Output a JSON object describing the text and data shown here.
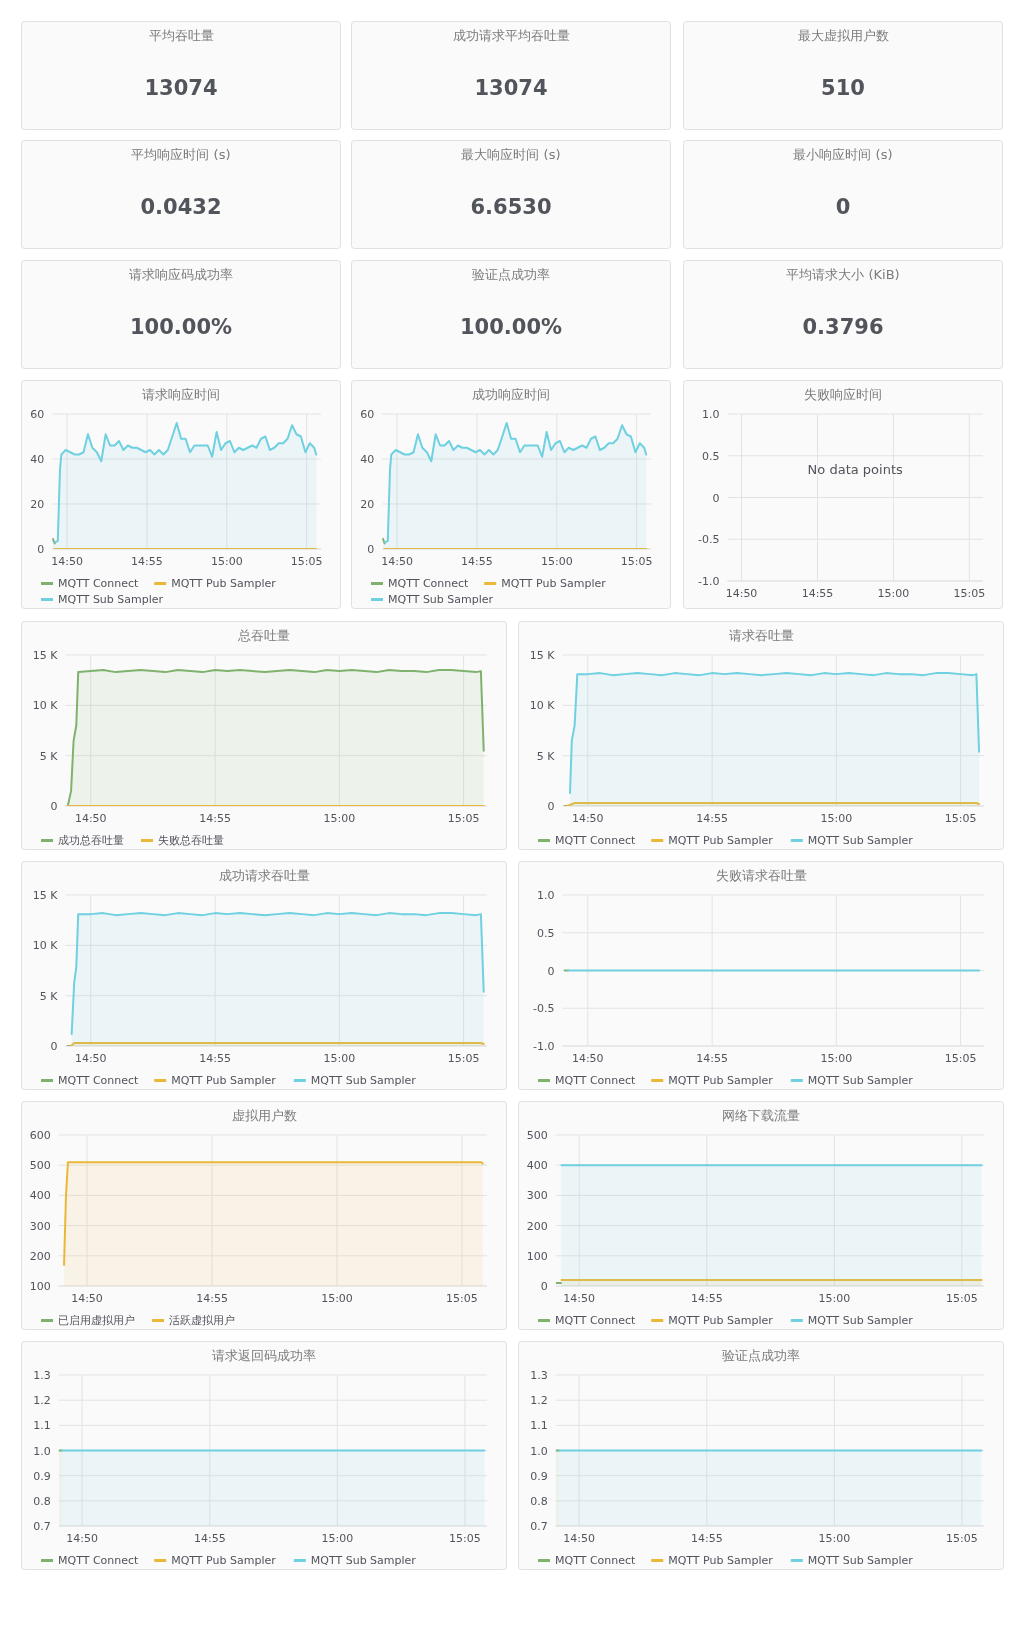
{
  "chart_data": [
    {
      "type": "other",
      "title": "平均吞吐量",
      "annotations": [
        "13074"
      ]
    },
    {
      "type": "other",
      "title": "成功请求平均吞吐量",
      "annotations": [
        "13074"
      ]
    },
    {
      "type": "other",
      "title": "最大虚拟用户数",
      "annotations": [
        "510"
      ]
    },
    {
      "type": "other",
      "title": "平均响应时间 (s)",
      "annotations": [
        "0.0432"
      ]
    },
    {
      "type": "other",
      "title": "最大响应时间 (s)",
      "annotations": [
        "6.6530"
      ]
    },
    {
      "type": "other",
      "title": "最小响应时间 (s)",
      "annotations": [
        "0"
      ]
    },
    {
      "type": "other",
      "title": "请求响应码成功率",
      "annotations": [
        "100.00%"
      ]
    },
    {
      "type": "other",
      "title": "验证点成功率",
      "annotations": [
        "100.00%"
      ]
    },
    {
      "type": "other",
      "title": "平均请求大小 (KiB)",
      "annotations": [
        "0.3796"
      ]
    },
    {
      "type": "area",
      "title": "请求响应时间",
      "grid": true,
      "legend": "bottom",
      "xlim": [
        14.8178,
        15.0983
      ],
      "ylim": [
        0,
        60
      ],
      "yticks": [
        0,
        20,
        40,
        60
      ],
      "xticks": [
        {
          "value": 14.8333,
          "label": "14:50"
        },
        {
          "value": 14.9167,
          "label": "14:55"
        },
        {
          "value": 15,
          "label": "15:00"
        },
        {
          "value": 15.0833,
          "label": "15:05"
        }
      ],
      "series": [
        {
          "name": "MQTT Connect",
          "color": "#7eb26d",
          "x": [
            14.8185,
            14.8204
          ],
          "values": [
            4.5,
            2.5
          ]
        },
        {
          "name": "MQTT Pub Sampler",
          "color": "#eab839",
          "type": "line",
          "x": [
            14.8204,
            15.0933
          ],
          "values": [
            0,
            0
          ]
        },
        {
          "name": "MQTT Sub Sampler",
          "color": "#6ed0e0",
          "x": [
            14.8204,
            14.8236,
            14.8259,
            14.8273,
            14.8319,
            14.8366,
            14.8412,
            14.8458,
            14.8505,
            14.8551,
            14.8597,
            14.8644,
            14.869,
            14.8736,
            14.8782,
            14.8829,
            14.8875,
            14.8921,
            14.8968,
            14.9014,
            14.906,
            14.9107,
            14.9153,
            14.9199,
            14.9245,
            14.9292,
            14.9338,
            14.9384,
            14.9431,
            14.9477,
            14.9523,
            14.957,
            14.9616,
            14.9662,
            14.9708,
            14.9755,
            14.9801,
            14.9847,
            14.9894,
            14.994,
            14.9986,
            15.0033,
            15.0079,
            15.0125,
            15.0171,
            15.0218,
            15.0264,
            15.031,
            15.0357,
            15.0403,
            15.0449,
            15.0496,
            15.0542,
            15.0588,
            15.0634,
            15.0681,
            15.0727,
            15.0773,
            15.082,
            15.0866,
            15.0912,
            15.0933
          ],
          "values": [
            3,
            3.5,
            35,
            42,
            44,
            43,
            42,
            42,
            43,
            51,
            45,
            43,
            39,
            51,
            46,
            46,
            48,
            44,
            46,
            45,
            45,
            44,
            43,
            44,
            42,
            44,
            42,
            44,
            50,
            56,
            49,
            49,
            43,
            46,
            46,
            46,
            46,
            41,
            52,
            44,
            47,
            48,
            43,
            45,
            44,
            45,
            46,
            45,
            49,
            50,
            44,
            45,
            47,
            47,
            49,
            55,
            51,
            50,
            43,
            47,
            45,
            42
          ]
        }
      ]
    },
    {
      "type": "area",
      "title": "成功响应时间",
      "grid": true,
      "legend": "bottom",
      "xlim": [
        14.8178,
        15.0983
      ],
      "ylim": [
        0,
        60
      ],
      "yticks": [
        0,
        20,
        40,
        60
      ],
      "xticks": [
        {
          "value": 14.8333,
          "label": "14:50"
        },
        {
          "value": 14.9167,
          "label": "14:55"
        },
        {
          "value": 15,
          "label": "15:00"
        },
        {
          "value": 15.0833,
          "label": "15:05"
        }
      ],
      "series": [
        {
          "name": "MQTT Connect",
          "color": "#7eb26d",
          "x": [
            14.8185,
            14.8204
          ],
          "values": [
            4.5,
            2.5
          ]
        },
        {
          "name": "MQTT Pub Sampler",
          "color": "#eab839",
          "type": "line",
          "x": [
            14.8204,
            15.0933
          ],
          "values": [
            0,
            0
          ]
        },
        {
          "name": "MQTT Sub Sampler",
          "color": "#6ed0e0",
          "x": [
            14.8204,
            14.8236,
            14.8259,
            14.8273,
            14.8319,
            14.8366,
            14.8412,
            14.8458,
            14.8505,
            14.8551,
            14.8597,
            14.8644,
            14.869,
            14.8736,
            14.8782,
            14.8829,
            14.8875,
            14.8921,
            14.8968,
            14.9014,
            14.906,
            14.9107,
            14.9153,
            14.9199,
            14.9245,
            14.9292,
            14.9338,
            14.9384,
            14.9431,
            14.9477,
            14.9523,
            14.957,
            14.9616,
            14.9662,
            14.9708,
            14.9755,
            14.9801,
            14.9847,
            14.9894,
            14.994,
            14.9986,
            15.0033,
            15.0079,
            15.0125,
            15.0171,
            15.0218,
            15.0264,
            15.031,
            15.0357,
            15.0403,
            15.0449,
            15.0496,
            15.0542,
            15.0588,
            15.0634,
            15.0681,
            15.0727,
            15.0773,
            15.082,
            15.0866,
            15.0912,
            15.0933
          ],
          "values": [
            3,
            3.5,
            35,
            42,
            44,
            43,
            42,
            42,
            43,
            51,
            45,
            43,
            39,
            51,
            46,
            46,
            48,
            44,
            46,
            45,
            45,
            44,
            43,
            44,
            42,
            44,
            42,
            44,
            50,
            56,
            49,
            49,
            43,
            46,
            46,
            46,
            46,
            41,
            52,
            44,
            47,
            48,
            43,
            45,
            44,
            45,
            46,
            45,
            49,
            50,
            44,
            45,
            47,
            47,
            49,
            55,
            51,
            50,
            43,
            47,
            45,
            42
          ]
        }
      ]
    },
    {
      "type": "line",
      "title": "失败响应时间",
      "grid": true,
      "xlim": [
        14.8178,
        15.0983
      ],
      "ylim": [
        -1,
        1
      ],
      "yticks": [
        {
          "value": -1,
          "label": "-1.0"
        },
        -0.5,
        0,
        0.5,
        {
          "value": 1,
          "label": "1.0"
        }
      ],
      "xticks": [
        {
          "value": 14.8333,
          "label": "14:50"
        },
        {
          "value": 14.9167,
          "label": "14:55"
        },
        {
          "value": 15,
          "label": "15:00"
        },
        {
          "value": 15.0833,
          "label": "15:05"
        }
      ],
      "annotations": [
        "No data points"
      ]
    },
    {
      "type": "area",
      "title": "总吞吐量",
      "grid": true,
      "legend": "bottom",
      "xlim": [
        14.8163,
        15.099
      ],
      "ylim": [
        0,
        15000
      ],
      "yticks": [
        0,
        {
          "value": 5000,
          "label": "5 K"
        },
        {
          "value": 10000,
          "label": "10 K"
        },
        {
          "value": 15000,
          "label": "15 K"
        }
      ],
      "xticks": [
        {
          "value": 14.8333,
          "label": "14:50"
        },
        {
          "value": 14.9167,
          "label": "14:55"
        },
        {
          "value": 15,
          "label": "15:00"
        },
        {
          "value": 15.0833,
          "label": "15:05"
        }
      ],
      "series": [
        {
          "name": "成功总吞吐量",
          "color": "#7eb26d",
          "x": [
            14.8179,
            14.8201,
            14.8218,
            14.8236,
            14.8249,
            14.8333,
            14.8417,
            14.85,
            14.8583,
            14.8667,
            14.875,
            14.8833,
            14.8917,
            14.9,
            14.9083,
            14.9167,
            14.925,
            14.9333,
            14.9417,
            14.95,
            14.9583,
            14.9667,
            14.975,
            14.9833,
            14.9917,
            15,
            15.0083,
            15.0167,
            15.025,
            15.0333,
            15.0417,
            15.05,
            15.0583,
            15.0667,
            15.075,
            15.0833,
            15.0917,
            15.0949,
            15.0968
          ],
          "values": [
            0,
            1500,
            6500,
            8000,
            13300,
            13400,
            13500,
            13300,
            13400,
            13500,
            13400,
            13300,
            13500,
            13400,
            13300,
            13500,
            13400,
            13500,
            13400,
            13300,
            13400,
            13500,
            13400,
            13300,
            13500,
            13400,
            13500,
            13400,
            13300,
            13500,
            13400,
            13400,
            13300,
            13500,
            13500,
            13400,
            13300,
            13400,
            5500
          ]
        },
        {
          "name": "失败总吞吐量",
          "color": "#eab839",
          "type": "line",
          "x": [
            14.8179,
            15.0968
          ],
          "values": [
            0,
            0
          ]
        }
      ]
    },
    {
      "type": "area",
      "title": "请求吞吐量",
      "grid": true,
      "legend": "bottom",
      "xlim": [
        14.8163,
        15.099
      ],
      "ylim": [
        0,
        15000
      ],
      "yticks": [
        0,
        {
          "value": 5000,
          "label": "5 K"
        },
        {
          "value": 10000,
          "label": "10 K"
        },
        {
          "value": 15000,
          "label": "15 K"
        }
      ],
      "xticks": [
        {
          "value": 14.8333,
          "label": "14:50"
        },
        {
          "value": 14.9167,
          "label": "14:55"
        },
        {
          "value": 15,
          "label": "15:00"
        },
        {
          "value": 15.0833,
          "label": "15:05"
        }
      ],
      "series": [
        {
          "name": "MQTT Connect",
          "color": "#7eb26d",
          "type": "line",
          "x": [
            14.8179,
            14.8201
          ],
          "values": [
            0,
            0
          ]
        },
        {
          "name": "MQTT Pub Sampler",
          "color": "#eab839",
          "x": [
            14.8196,
            14.8245,
            15.0939,
            15.0957
          ],
          "values": [
            0,
            300,
            300,
            200
          ]
        },
        {
          "name": "MQTT Sub Sampler",
          "color": "#6ed0e0",
          "x": [
            14.8214,
            14.8226,
            14.8245,
            14.8263,
            14.8333,
            14.8417,
            14.85,
            14.8583,
            14.8667,
            14.875,
            14.8833,
            14.8917,
            14.9,
            14.9083,
            14.9167,
            14.925,
            14.9333,
            14.9417,
            14.95,
            14.9583,
            14.9667,
            14.975,
            14.9833,
            14.9917,
            15,
            15.0083,
            15.0167,
            15.025,
            15.0333,
            15.0417,
            15.05,
            15.0583,
            15.0667,
            15.075,
            15.0833,
            15.0917,
            15.0939,
            15.0957
          ],
          "values": [
            1300,
            6500,
            8000,
            13100,
            13100,
            13200,
            13000,
            13100,
            13200,
            13100,
            13000,
            13200,
            13100,
            13000,
            13200,
            13100,
            13200,
            13100,
            13000,
            13100,
            13200,
            13100,
            13000,
            13200,
            13100,
            13200,
            13100,
            13000,
            13200,
            13100,
            13100,
            13000,
            13200,
            13200,
            13100,
            13000,
            13100,
            5400
          ]
        }
      ]
    },
    {
      "type": "area",
      "title": "成功请求吞吐量",
      "grid": true,
      "legend": "bottom",
      "xlim": [
        14.8163,
        15.099
      ],
      "ylim": [
        0,
        15000
      ],
      "yticks": [
        0,
        {
          "value": 5000,
          "label": "5 K"
        },
        {
          "value": 10000,
          "label": "10 K"
        },
        {
          "value": 15000,
          "label": "15 K"
        }
      ],
      "xticks": [
        {
          "value": 14.8333,
          "label": "14:50"
        },
        {
          "value": 14.9167,
          "label": "14:55"
        },
        {
          "value": 15,
          "label": "15:00"
        },
        {
          "value": 15.0833,
          "label": "15:05"
        }
      ],
      "series": [
        {
          "name": "MQTT Connect",
          "color": "#7eb26d",
          "type": "line",
          "x": [
            14.8179,
            14.8201
          ],
          "values": [
            0,
            0
          ]
        },
        {
          "name": "MQTT Pub Sampler",
          "color": "#eab839",
          "x": [
            14.8201,
            14.8222,
            15.0949,
            15.0968
          ],
          "values": [
            0,
            300,
            300,
            200
          ]
        },
        {
          "name": "MQTT Sub Sampler",
          "color": "#6ed0e0",
          "x": [
            14.8205,
            14.8222,
            14.8236,
            14.8249,
            14.8333,
            14.8417,
            14.85,
            14.8583,
            14.8667,
            14.875,
            14.8833,
            14.8917,
            14.9,
            14.9083,
            14.9167,
            14.925,
            14.9333,
            14.9417,
            14.95,
            14.9583,
            14.9667,
            14.975,
            14.9833,
            14.9917,
            15,
            15.0083,
            15.0167,
            15.025,
            15.0333,
            15.0417,
            15.05,
            15.0583,
            15.0667,
            15.075,
            15.0833,
            15.0917,
            15.0949,
            15.0968
          ],
          "values": [
            1200,
            6300,
            7800,
            13100,
            13100,
            13200,
            13000,
            13100,
            13200,
            13100,
            13000,
            13200,
            13100,
            13000,
            13200,
            13100,
            13200,
            13100,
            13000,
            13100,
            13200,
            13100,
            13000,
            13200,
            13100,
            13200,
            13100,
            13000,
            13200,
            13100,
            13100,
            13000,
            13200,
            13200,
            13100,
            13000,
            13100,
            5400
          ]
        }
      ]
    },
    {
      "type": "line",
      "title": "失败请求吞吐量",
      "grid": true,
      "legend": "bottom",
      "xlim": [
        14.8163,
        15.099
      ],
      "ylim": [
        -1,
        1
      ],
      "yticks": [
        {
          "value": -1,
          "label": "-1.0"
        },
        -0.5,
        0,
        0.5,
        {
          "value": 1,
          "label": "1.0"
        }
      ],
      "xticks": [
        {
          "value": 14.8333,
          "label": "14:50"
        },
        {
          "value": 14.9167,
          "label": "14:55"
        },
        {
          "value": 15,
          "label": "15:00"
        },
        {
          "value": 15.0833,
          "label": "15:05"
        }
      ],
      "series": [
        {
          "name": "MQTT Connect",
          "color": "#7eb26d",
          "x": [
            14.8179,
            14.8201
          ],
          "values": [
            0,
            0
          ]
        },
        {
          "name": "MQTT Pub Sampler",
          "color": "#eab839",
          "values": [
            null
          ]
        },
        {
          "name": "MQTT Sub Sampler",
          "color": "#6ed0e0",
          "x": [
            14.8201,
            15.0957
          ],
          "values": [
            0,
            0
          ]
        }
      ]
    },
    {
      "type": "area",
      "title": "虚拟用户数",
      "grid": true,
      "legend": "bottom",
      "xlim": [
        14.8145,
        15.1
      ],
      "ylim": [
        100,
        600
      ],
      "yticks": [
        100,
        200,
        300,
        400,
        500,
        600
      ],
      "xticks": [
        {
          "value": 14.8333,
          "label": "14:50"
        },
        {
          "value": 14.9167,
          "label": "14:55"
        },
        {
          "value": 15,
          "label": "15:00"
        },
        {
          "value": 15.0833,
          "label": "15:05"
        }
      ],
      "series": [
        {
          "name": "已启用虚拟用户",
          "color": "#7eb26d",
          "values": [
            null
          ]
        },
        {
          "name": "活跃虚拟用户",
          "color": "#eab839",
          "x": [
            14.818,
            14.8193,
            14.8206,
            15.0963,
            15.0972
          ],
          "values": [
            170,
            400,
            510,
            510,
            505
          ]
        }
      ]
    },
    {
      "type": "area",
      "title": "网络下载流量",
      "grid": true,
      "legend": "bottom",
      "xlim": [
        14.818,
        15.0978
      ],
      "ylim": [
        0,
        500
      ],
      "yticks": [
        0,
        100,
        200,
        300,
        400,
        500
      ],
      "xticks": [
        {
          "value": 14.8333,
          "label": "14:50"
        },
        {
          "value": 14.9167,
          "label": "14:55"
        },
        {
          "value": 15,
          "label": "15:00"
        },
        {
          "value": 15.0833,
          "label": "15:05"
        }
      ],
      "series": [
        {
          "name": "MQTT Connect",
          "color": "#7eb26d",
          "type": "line",
          "x": [
            14.8184,
            14.8214
          ],
          "values": [
            10,
            10
          ]
        },
        {
          "name": "MQTT Pub Sampler",
          "color": "#eab839",
          "x": [
            14.8217,
            15.0962
          ],
          "values": [
            20,
            20
          ]
        },
        {
          "name": "MQTT Sub Sampler",
          "color": "#6ed0e0",
          "x": [
            14.8217,
            15.0962
          ],
          "values": [
            400,
            400
          ]
        }
      ]
    },
    {
      "type": "area",
      "title": "请求返回码成功率",
      "grid": true,
      "legend": "bottom",
      "xlim": [
        14.8181,
        15.0977
      ],
      "ylim": [
        0.7,
        1.3
      ],
      "yticks": [
        0.7,
        0.8,
        0.9,
        {
          "value": 1,
          "label": "1.0"
        },
        1.1,
        1.2,
        1.3
      ],
      "xticks": [
        {
          "value": 14.8333,
          "label": "14:50"
        },
        {
          "value": 14.9167,
          "label": "14:55"
        },
        {
          "value": 15,
          "label": "15:00"
        },
        {
          "value": 15.0833,
          "label": "15:05"
        }
      ],
      "series": [
        {
          "name": "MQTT Connect",
          "color": "#7eb26d",
          "x": [
            14.8181,
            14.8203
          ],
          "values": [
            1,
            1
          ]
        },
        {
          "name": "MQTT Pub Sampler",
          "color": "#eab839",
          "values": [
            null
          ]
        },
        {
          "name": "MQTT Sub Sampler",
          "color": "#6ed0e0",
          "x": [
            14.8203,
            15.096
          ],
          "values": [
            1,
            1
          ]
        }
      ]
    },
    {
      "type": "area",
      "title": "验证点成功率",
      "grid": true,
      "legend": "bottom",
      "xlim": [
        14.8181,
        15.0977
      ],
      "ylim": [
        0.7,
        1.3
      ],
      "yticks": [
        0.7,
        0.8,
        0.9,
        {
          "value": 1,
          "label": "1.0"
        },
        1.1,
        1.2,
        1.3
      ],
      "xticks": [
        {
          "value": 14.8333,
          "label": "14:50"
        },
        {
          "value": 14.9167,
          "label": "14:55"
        },
        {
          "value": 15,
          "label": "15:00"
        },
        {
          "value": 15.0833,
          "label": "15:05"
        }
      ],
      "series": [
        {
          "name": "MQTT Connect",
          "color": "#7eb26d",
          "x": [
            14.8181,
            14.8203
          ],
          "values": [
            1,
            1
          ]
        },
        {
          "name": "MQTT Pub Sampler",
          "color": "#eab839",
          "values": [
            null
          ]
        },
        {
          "name": "MQTT Sub Sampler",
          "color": "#6ed0e0",
          "x": [
            14.8203,
            15.096
          ],
          "values": [
            1,
            1
          ]
        }
      ]
    }
  ]
}
